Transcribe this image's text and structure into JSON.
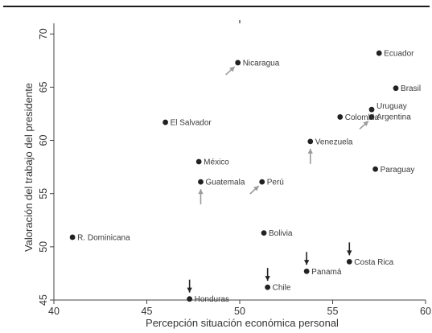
{
  "chart_data": {
    "type": "scatter",
    "xlabel": "Percepción situación económica personal",
    "ylabel": "Valoración del trabajo del presidente",
    "xlim": [
      40,
      60
    ],
    "ylim": [
      45,
      71
    ],
    "xticks": [
      "40",
      "45",
      "50",
      "55",
      "60"
    ],
    "yticks": [
      "45",
      "50",
      "55",
      "60",
      "65",
      "70"
    ],
    "reference_lines": {
      "x": 50,
      "y": 50
    },
    "grid": "horizontal",
    "points": [
      {
        "label": "Ecuador",
        "x": 57.5,
        "y": 68.2
      },
      {
        "label": "Nicaragua",
        "x": 49.9,
        "y": 67.3
      },
      {
        "label": "Brasil",
        "x": 58.4,
        "y": 64.9
      },
      {
        "label": "Uruguay",
        "x": 57.1,
        "y": 62.9
      },
      {
        "label": "Argentina",
        "x": 57.1,
        "y": 62.2
      },
      {
        "label": "Colombia",
        "x": 55.4,
        "y": 62.2
      },
      {
        "label": "El Salvador",
        "x": 46.0,
        "y": 61.7
      },
      {
        "label": "Venezuela",
        "x": 53.8,
        "y": 59.9
      },
      {
        "label": "México",
        "x": 47.8,
        "y": 58.0
      },
      {
        "label": "Paraguay",
        "x": 57.3,
        "y": 57.3
      },
      {
        "label": "Guatemala",
        "x": 47.9,
        "y": 56.1
      },
      {
        "label": "Perú",
        "x": 51.2,
        "y": 56.1
      },
      {
        "label": "R. Dominicana",
        "x": 41.0,
        "y": 50.9
      },
      {
        "label": "Bolivia",
        "x": 51.3,
        "y": 51.3
      },
      {
        "label": "Costa Rica",
        "x": 55.9,
        "y": 48.6
      },
      {
        "label": "Panamá",
        "x": 53.6,
        "y": 47.7
      },
      {
        "label": "Chile",
        "x": 51.5,
        "y": 46.2
      },
      {
        "label": "Honduras",
        "x": 47.3,
        "y": 45.1
      }
    ],
    "arrows": [
      {
        "country": "Nicaragua",
        "direction": "up-right"
      },
      {
        "country": "Perú",
        "direction": "up-right"
      },
      {
        "country": "Argentina",
        "direction": "up-right"
      },
      {
        "country": "Guatemala",
        "direction": "up"
      },
      {
        "country": "Venezuela",
        "direction": "up"
      },
      {
        "country": "Honduras",
        "direction": "down"
      },
      {
        "country": "Chile",
        "direction": "down"
      },
      {
        "country": "Panamá",
        "direction": "down"
      },
      {
        "country": "Costa Rica",
        "direction": "down"
      }
    ],
    "colors": {
      "marker": "#222222",
      "arrow_up": "#9a9a9a",
      "arrow_down": "#222222",
      "plot_bg": "#ffffff",
      "figure_bg": "#ffffff",
      "grid": "#e4e4e4"
    }
  }
}
